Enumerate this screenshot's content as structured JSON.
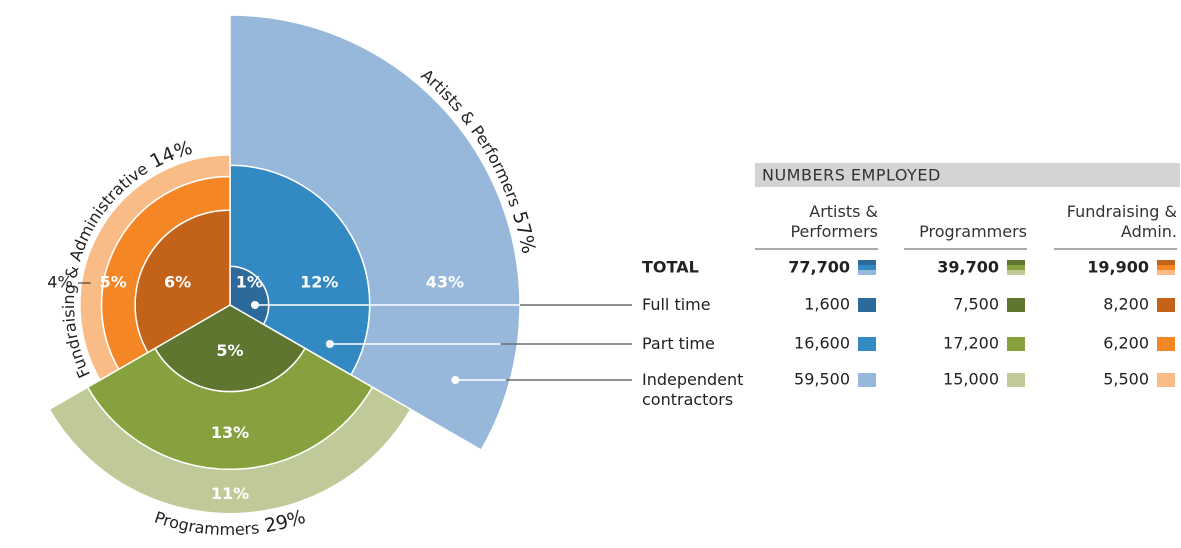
{
  "chart_data": {
    "type": "polar-stack",
    "categories": [
      "Artists & Performers",
      "Programmers",
      "Fundraising & Administrative"
    ],
    "totals": [
      57,
      29,
      14
    ],
    "totals_labels": [
      "57%",
      "29%",
      "14%"
    ],
    "series": [
      {
        "name": "Full time",
        "colors": [
          "#2b6a9a",
          "#5f7631",
          "#c3631a"
        ],
        "values": [
          1,
          5,
          6
        ],
        "value_labels": [
          "1%",
          "5%",
          "6%"
        ]
      },
      {
        "name": "Part time",
        "colors": [
          "#3389c1",
          "#87a13f",
          "#f58626"
        ],
        "values": [
          12,
          13,
          5
        ],
        "value_labels": [
          "12%",
          "13%",
          "5%"
        ]
      },
      {
        "name": "Independent contractors",
        "colors": [
          "#97b8da",
          "#bfca98",
          "#f9bc87"
        ],
        "values": [
          43,
          11,
          4
        ],
        "value_labels": [
          "43%",
          "11%",
          "4%"
        ]
      }
    ],
    "table": {
      "title": "NUMBERS EMPLOYED",
      "columns": [
        "Artists & Performers",
        "Programmers",
        "Fundraising & Admin."
      ],
      "total_label": "TOTAL",
      "totals": [
        "77,700",
        "39,700",
        "19,900"
      ],
      "rows": [
        [
          "1,600",
          "7,500",
          "8,200"
        ],
        [
          "16,600",
          "17,200",
          "6,200"
        ],
        [
          "59,500",
          "15,000",
          "5,500"
        ]
      ]
    }
  }
}
